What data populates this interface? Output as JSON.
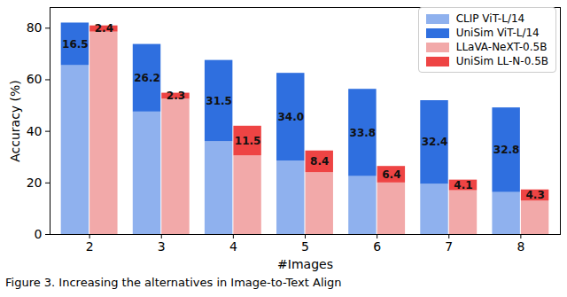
{
  "chart_data": {
    "type": "bar",
    "stacked": true,
    "x_label": "#Images",
    "y_label": "Accuracy (%)",
    "caption": "Figure 3. Increasing the alternatives in Image-to-Text Align",
    "categories": [
      "2",
      "3",
      "4",
      "5",
      "6",
      "7",
      "8"
    ],
    "ylim": [
      0,
      88
    ],
    "yticks": [
      0,
      20,
      40,
      60,
      80
    ],
    "grid": false,
    "legend": "upper right",
    "stacks": [
      {
        "series": [
          {
            "name": "CLIP ViT-L/14",
            "color": "#8fb1ee",
            "values": [
              65.5,
              47.5,
              36,
              28.5,
              22.5,
              19.5,
              16.3
            ]
          },
          {
            "name": "UniSim ViT-L/14",
            "color": "#2f6fdf",
            "data_labels": true,
            "values": [
              16.5,
              26.2,
              31.5,
              34.0,
              33.8,
              32.4,
              32.8
            ],
            "value_labels": [
              "16.5",
              "26.2",
              "31.5",
              "34.0",
              "33.8",
              "32.4",
              "32.8"
            ]
          }
        ]
      },
      {
        "series": [
          {
            "name": "LLaVA-NeXT-0.5B",
            "color": "#f2a9a9",
            "values": [
              78.5,
              52.5,
              30.5,
              24,
              20,
              17,
              13
            ]
          },
          {
            "name": "UniSim LL-N-0.5B",
            "color": "#ee4444",
            "data_labels": true,
            "values": [
              2.4,
              2.3,
              11.5,
              8.4,
              6.4,
              4.1,
              4.3
            ],
            "value_labels": [
              "2.4",
              "2.3",
              "11.5",
              "8.4",
              "6.4",
              "4.1",
              "4.3"
            ]
          }
        ]
      }
    ]
  }
}
